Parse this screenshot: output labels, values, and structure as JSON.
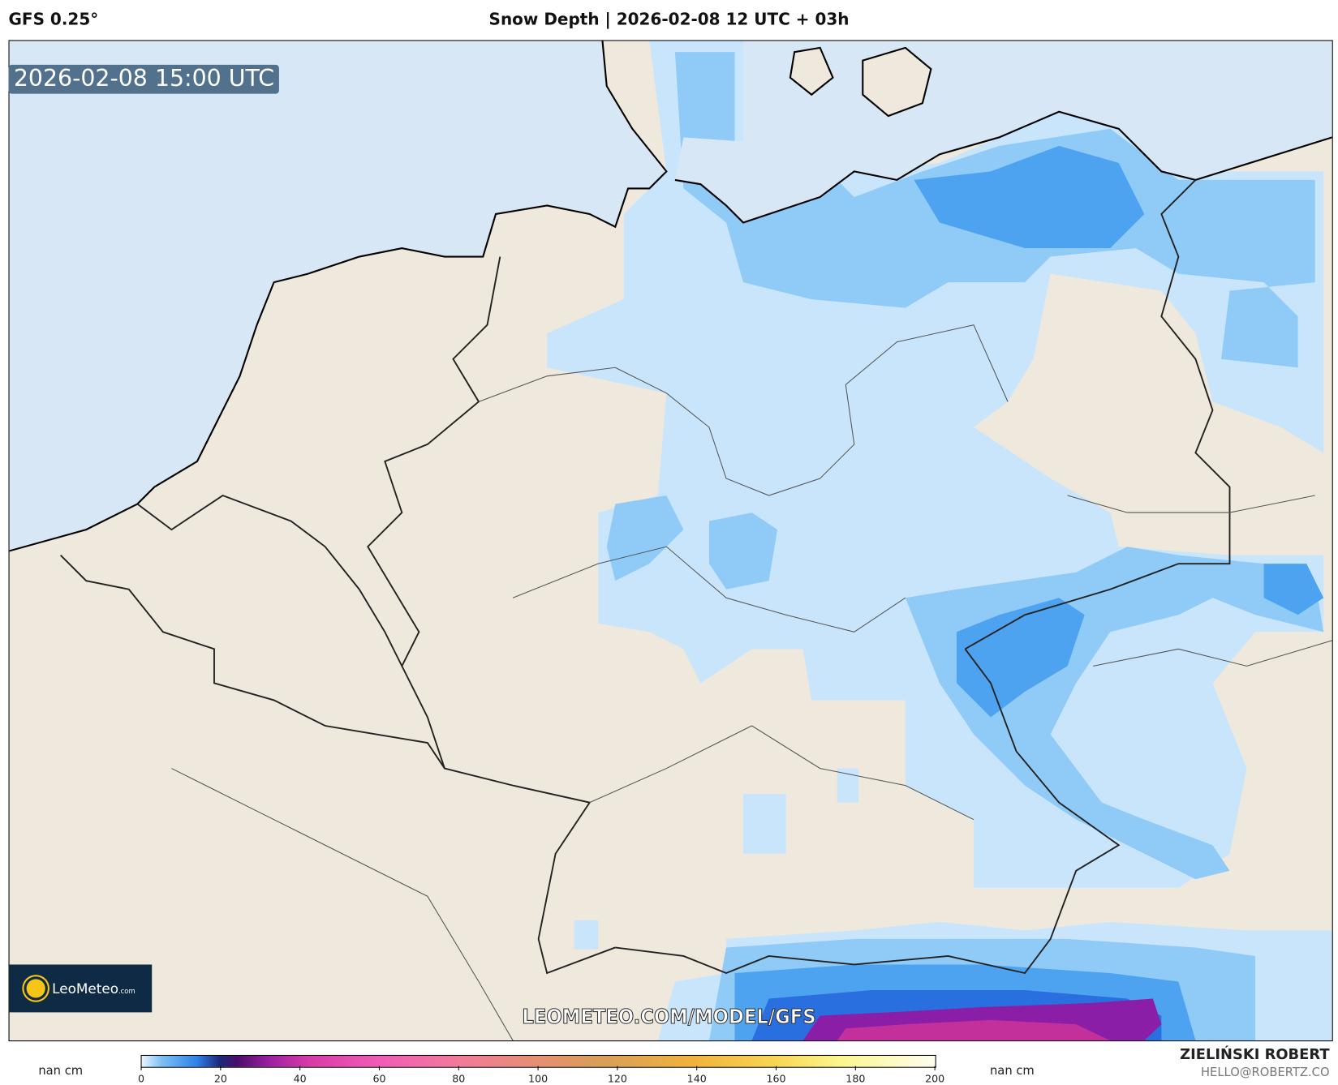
{
  "header": {
    "model": "GFS 0.25°",
    "title": "Snow Depth | 2026-02-08 12 UTC + 03h"
  },
  "map": {
    "valid_time": "2026-02-08 15:00 UTC",
    "watermark": "LEOMETEO.COM/MODEL/GFS",
    "logo_text": "LeoMeteo",
    "logo_suffix": ".com",
    "colors": {
      "sea": "#d8e7f5",
      "land": "#efe8dc",
      "snow_light": "#c9e5fc",
      "snow_mid": "#90cbf8",
      "snow_blue": "#4ea3f0",
      "snow_deep": "#2a6fe0",
      "snow_purple": "#8a1ea6",
      "snow_magenta": "#c3309c"
    }
  },
  "colorbar": {
    "unit_left": "nan cm",
    "unit_right": "nan cm",
    "min": 0,
    "max": 200,
    "ticks": [
      "0",
      "20",
      "40",
      "60",
      "80",
      "100",
      "120",
      "140",
      "160",
      "180",
      "200"
    ]
  },
  "footer": {
    "author": "ZIELIŃSKI ROBERT",
    "email": "HELLO@ROBERTZ.CO"
  }
}
